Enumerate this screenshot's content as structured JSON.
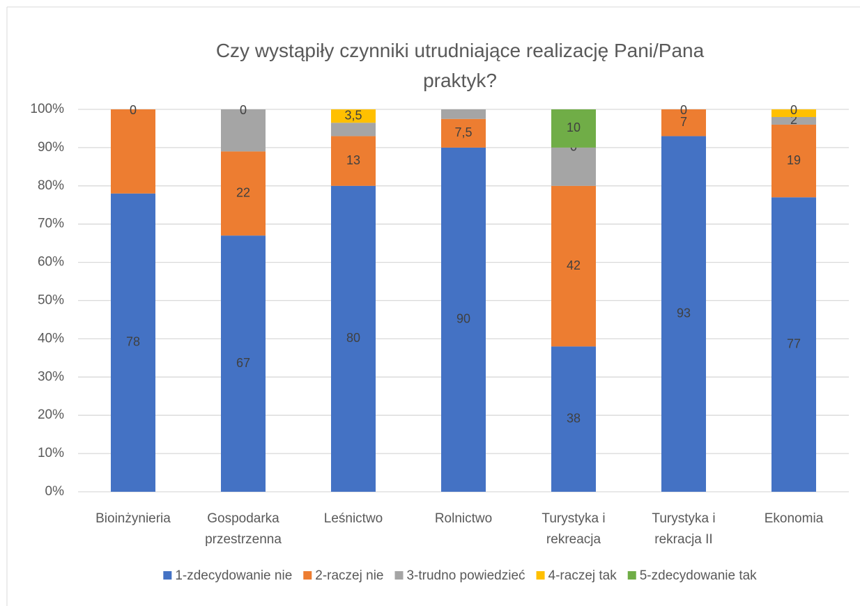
{
  "chart_data": {
    "type": "stacked_bar_percent",
    "title": "Czy wystąpiły czynniki utrudniające realizację Pani/Pana praktyk?",
    "categories": [
      "Bioinżynieria",
      "Gospodarka przestrzenna",
      "Leśnictwo",
      "Rolnictwo",
      "Turystyka i rekreacja",
      "Turystyka i rekracja II",
      "Ekonomia"
    ],
    "series": [
      {
        "name": "1-zdecydowanie nie",
        "color": "#4472c4",
        "values": [
          78,
          67,
          80,
          90,
          38,
          93,
          77
        ],
        "value_labels": [
          "78",
          "67",
          "80",
          "90",
          "38",
          "93",
          "77"
        ]
      },
      {
        "name": "2-raczej nie",
        "color": "#ed7d31",
        "values": [
          22,
          22,
          13,
          7.5,
          42,
          7,
          19
        ],
        "value_labels": [
          null,
          "22",
          "13",
          "7,5",
          "42",
          "7",
          "19"
        ]
      },
      {
        "name": "3-trudno powiedzieć",
        "color": "#a5a5a5",
        "values": [
          0,
          11,
          3.5,
          2.5,
          10,
          0,
          2
        ],
        "value_labels": [
          "0",
          null,
          null,
          null,
          null,
          "0",
          "2"
        ]
      },
      {
        "name": "4-raczej tak",
        "color": "#ffc000",
        "values": [
          0,
          0,
          3.5,
          0,
          0,
          0,
          2
        ],
        "value_labels": [
          null,
          "0",
          "3,5",
          null,
          "0",
          null,
          null
        ]
      },
      {
        "name": "5-zdecydowanie tak",
        "color": "#70ad47",
        "values": [
          0,
          0,
          0,
          0,
          10,
          0,
          0
        ],
        "value_labels": [
          null,
          null,
          null,
          null,
          "10",
          null,
          "0"
        ]
      }
    ],
    "ylim": [
      0,
      100
    ],
    "yticks": [
      {
        "value": 0,
        "label": "0%"
      },
      {
        "value": 10,
        "label": "10%"
      },
      {
        "value": 20,
        "label": "20%"
      },
      {
        "value": 30,
        "label": "30%"
      },
      {
        "value": 40,
        "label": "40%"
      },
      {
        "value": 50,
        "label": "50%"
      },
      {
        "value": 60,
        "label": "60%"
      },
      {
        "value": 70,
        "label": "70%"
      },
      {
        "value": 80,
        "label": "80%"
      },
      {
        "value": 90,
        "label": "90%"
      },
      {
        "value": 100,
        "label": "100%"
      }
    ],
    "grid": true,
    "legend": "bottom"
  }
}
